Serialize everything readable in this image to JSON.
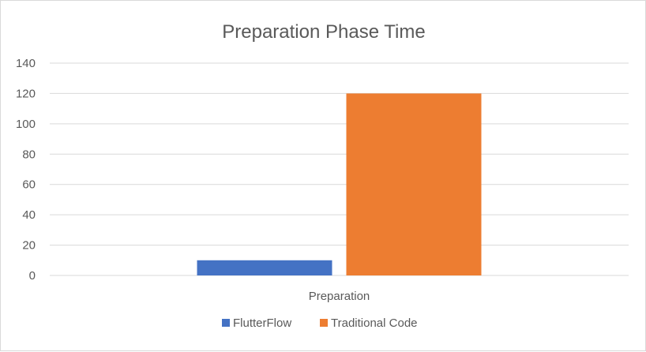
{
  "chart_data": {
    "type": "bar",
    "title": "Preparation Phase Time",
    "categories": [
      "Preparation"
    ],
    "series": [
      {
        "name": "FlutterFlow",
        "values": [
          10
        ],
        "color": "#4472C4"
      },
      {
        "name": "Traditional Code",
        "values": [
          120
        ],
        "color": "#ED7D31"
      }
    ],
    "ylim": [
      0,
      140
    ],
    "yticks": [
      "0",
      "20",
      "40",
      "60",
      "80",
      "100",
      "120",
      "140"
    ],
    "grid": true,
    "legend_position": "bottom",
    "xlabel": "",
    "ylabel": ""
  }
}
